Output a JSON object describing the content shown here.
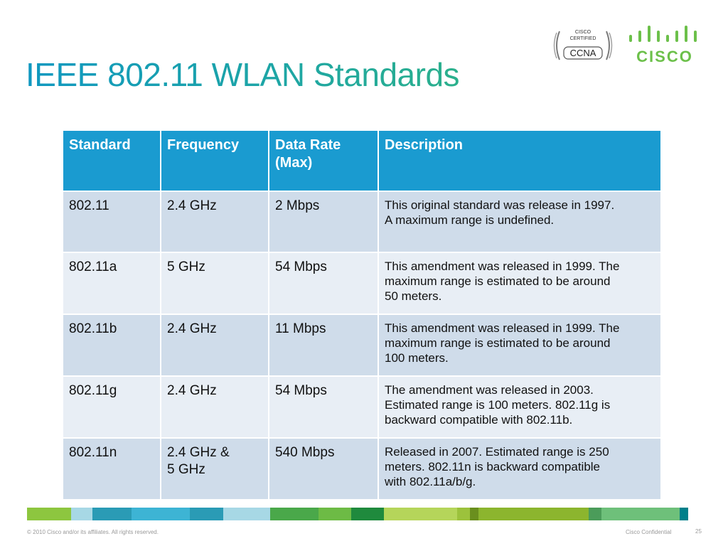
{
  "slide": {
    "title": "IEEE 802.11 WLAN Standards",
    "colors": {
      "title_start": "#1098c0",
      "title_end": "#2bb08c",
      "header_bg": "#1a9bd0",
      "row_odd": "#cfdcea",
      "row_even": "#e8eef5",
      "cisco_green": "#6cc04a"
    }
  },
  "badge": {
    "line1": "CISCO",
    "line2": "CERTIFIED",
    "line3": "CCNA"
  },
  "logo": {
    "word": "CISCO"
  },
  "table": {
    "headers": [
      "Standard",
      "Frequency",
      "Data Rate (Max)",
      "Description"
    ],
    "rows": [
      {
        "standard": "802.11",
        "frequency": [
          "2.4 GHz"
        ],
        "rate": "2 Mbps",
        "description": [
          "This original standard was release in 1997.",
          "A maximum range is undefined."
        ]
      },
      {
        "standard": "802.11a",
        "frequency": [
          "5 GHz"
        ],
        "rate": "54 Mbps",
        "description": [
          "This amendment was released in 1999.  The",
          "maximum range is estimated to be around",
          "50 meters."
        ]
      },
      {
        "standard": "802.11b",
        "frequency": [
          "2.4 GHz"
        ],
        "rate": "11 Mbps",
        "description": [
          "This amendment was released in 1999.  The",
          "maximum range is estimated to be around",
          "100 meters."
        ]
      },
      {
        "standard": "802.11g",
        "frequency": [
          "2.4 GHz"
        ],
        "rate": "54 Mbps",
        "description": [
          "The amendment was released in 2003.",
          "Estimated range is 100 meters.  802.11g is",
          "backward compatible with 802.11b."
        ]
      },
      {
        "standard": "802.11n",
        "frequency": [
          "2.4 GHz  &",
          "5 GHz"
        ],
        "rate": "540 Mbps",
        "description": [
          "Released in 2007.  Estimated range is 250",
          "meters.  802.11n is backward compatible",
          "with 802.11a/b/g."
        ]
      }
    ]
  },
  "footer": {
    "copyright": "© 2010 Cisco and/or its affiliates. All rights reserved.",
    "confidential": "Cisco Confidential",
    "page": "25",
    "strip_colors": [
      "#8dc63f",
      "#a7d8e5",
      "#2a9bb5",
      "#3db4d4",
      "#2a9bb5",
      "#a7d8e5",
      "#4aa84a",
      "#6dbb45",
      "#1f8a3d",
      "#b5d55a",
      "#9cc23c",
      "#6a8f1e",
      "#8cb52e",
      "#4b9c5a",
      "#6ec07a",
      "#00808a"
    ]
  }
}
